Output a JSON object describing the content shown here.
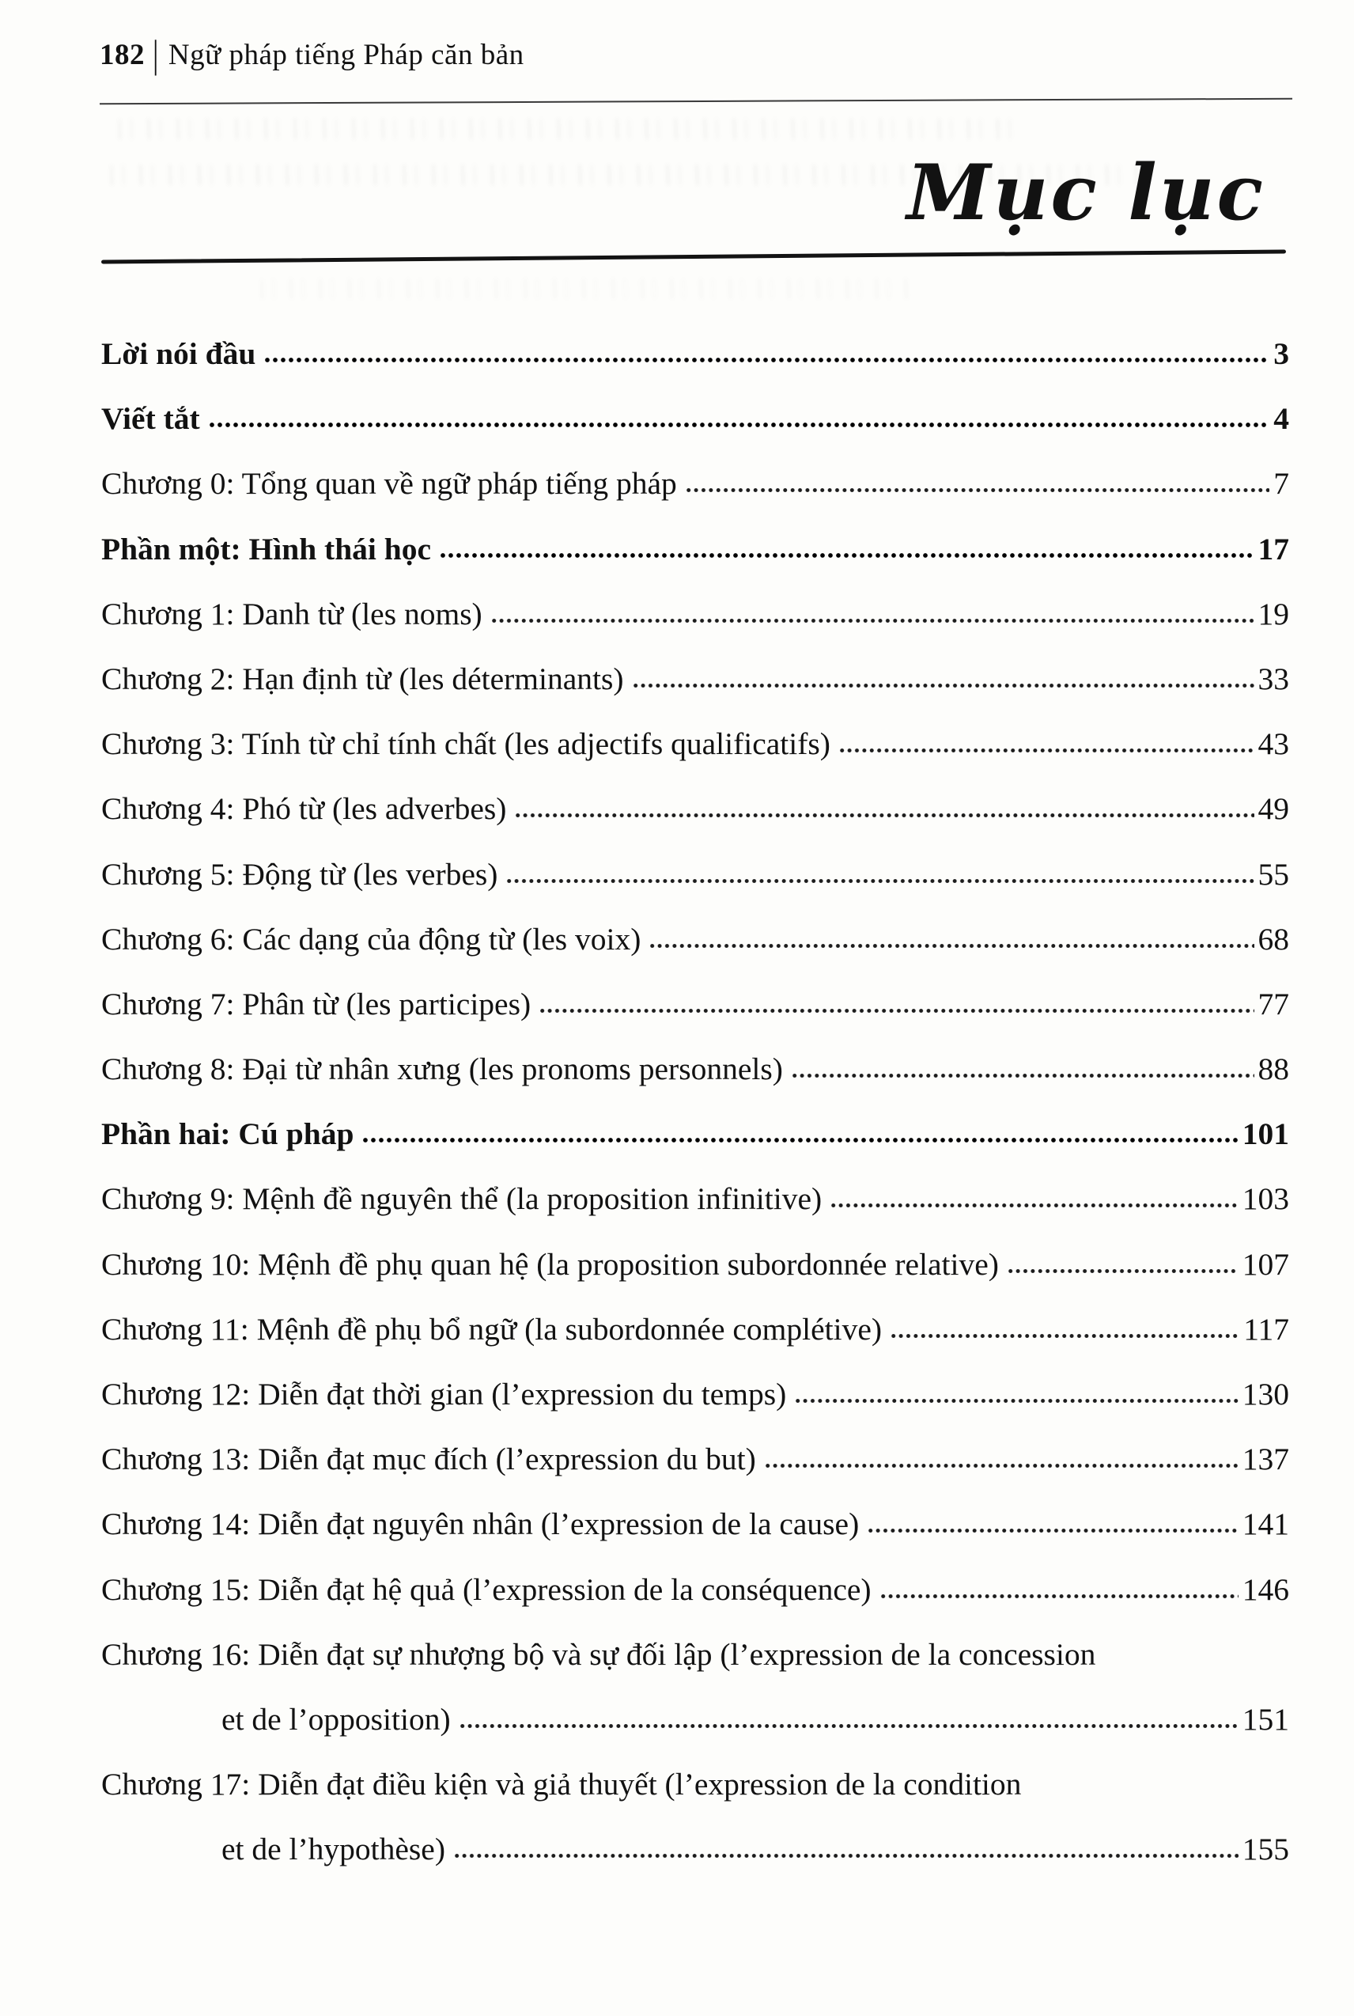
{
  "page": {
    "header": {
      "page_number": "182",
      "separator": "|",
      "book_title": "Ngữ pháp tiếng Pháp căn bản"
    },
    "title": "Mục lục",
    "toc": [
      {
        "label": "Lời nói đầu",
        "page": "3",
        "bold": true
      },
      {
        "label": "Viết tắt",
        "page": "4",
        "bold": true
      },
      {
        "label": "Chương 0: Tổng quan về ngữ pháp tiếng pháp",
        "page": "7",
        "bold": false
      },
      {
        "label": "Phần một: Hình thái học",
        "page": "17",
        "bold": true
      },
      {
        "label": "Chương 1: Danh từ (les noms)",
        "page": "19",
        "bold": false
      },
      {
        "label": "Chương 2: Hạn định từ (les déterminants)",
        "page": "33",
        "bold": false
      },
      {
        "label": "Chương 3: Tính từ chỉ tính chất (les adjectifs qualificatifs)",
        "page": "43",
        "bold": false
      },
      {
        "label": "Chương 4: Phó từ (les adverbes)",
        "page": "49",
        "bold": false
      },
      {
        "label": "Chương 5: Động từ (les verbes)",
        "page": "55",
        "bold": false
      },
      {
        "label": "Chương 6: Các dạng của động từ (les voix)",
        "page": "68",
        "bold": false
      },
      {
        "label": "Chương 7: Phân từ (les participes)",
        "page": "77",
        "bold": false
      },
      {
        "label": "Chương 8: Đại từ nhân xưng (les pronoms personnels)",
        "page": "88",
        "bold": false
      },
      {
        "label": "Phần hai: Cú pháp",
        "page": "101",
        "bold": true
      },
      {
        "label": "Chương 9: Mệnh đề nguyên thể (la proposition infinitive)",
        "page": "103",
        "bold": false
      },
      {
        "label": "Chương 10: Mệnh đề phụ quan hệ (la proposition subordonnée relative)",
        "page": "107",
        "bold": false
      },
      {
        "label": "Chương 11: Mệnh đề phụ bổ ngữ (la subordonnée complétive)",
        "page": "117",
        "bold": false
      },
      {
        "label": "Chương 12: Diễn đạt thời gian (l’expression du temps)",
        "page": "130",
        "bold": false
      },
      {
        "label": "Chương 13: Diễn đạt mục đích (l’expression du but)",
        "page": "137",
        "bold": false
      },
      {
        "label": "Chương 14: Diễn đạt nguyên nhân (l’expression de la cause)",
        "page": "141",
        "bold": false
      },
      {
        "label": "Chương 15: Diễn đạt hệ quả (l’expression de la conséquence)",
        "page": "146",
        "bold": false
      },
      {
        "label": "Chương 16: Diễn đạt sự nhượng bộ và sự đối lập (l’expression de la concession",
        "line2": "et de l’opposition)",
        "page": "151",
        "bold": false
      },
      {
        "label": "Chương 17: Diễn đạt điều kiện và giả thuyết (l’expression de la condition",
        "line2": "et de l’hypothèse)",
        "page": "155",
        "bold": false
      }
    ]
  }
}
